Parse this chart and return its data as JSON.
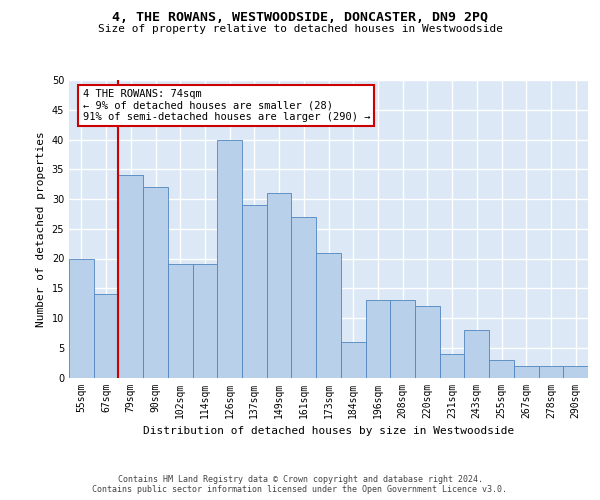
{
  "title": "4, THE ROWANS, WESTWOODSIDE, DONCASTER, DN9 2PQ",
  "subtitle": "Size of property relative to detached houses in Westwoodside",
  "xlabel": "Distribution of detached houses by size in Westwoodside",
  "ylabel": "Number of detached properties",
  "categories": [
    "55sqm",
    "67sqm",
    "79sqm",
    "90sqm",
    "102sqm",
    "114sqm",
    "126sqm",
    "137sqm",
    "149sqm",
    "161sqm",
    "173sqm",
    "184sqm",
    "196sqm",
    "208sqm",
    "220sqm",
    "231sqm",
    "243sqm",
    "255sqm",
    "267sqm",
    "278sqm",
    "290sqm"
  ],
  "values": [
    20,
    14,
    34,
    32,
    19,
    19,
    40,
    29,
    31,
    27,
    21,
    6,
    13,
    13,
    12,
    4,
    8,
    3,
    2,
    2,
    2
  ],
  "bar_color": "#b8d0ea",
  "bar_edge_color": "#4f86c0",
  "background_color": "#dce8f5",
  "grid_color": "#ffffff",
  "annotation_line1": "4 THE ROWANS: 74sqm",
  "annotation_line2": "← 9% of detached houses are smaller (28)",
  "annotation_line3": "91% of semi-detached houses are larger (290) →",
  "annotation_box_facecolor": "#ffffff",
  "annotation_box_edgecolor": "#cc0000",
  "vline_x_idx": 1.5,
  "vline_color": "#cc0000",
  "ylim_min": 0,
  "ylim_max": 50,
  "yticks": [
    0,
    5,
    10,
    15,
    20,
    25,
    30,
    35,
    40,
    45,
    50
  ],
  "footer_line1": "Contains HM Land Registry data © Crown copyright and database right 2024.",
  "footer_line2": "Contains public sector information licensed under the Open Government Licence v3.0.",
  "title_fontsize": 9.5,
  "subtitle_fontsize": 8.0,
  "ylabel_fontsize": 8.0,
  "xlabel_fontsize": 8.0,
  "tick_fontsize": 7.0,
  "annotation_fontsize": 7.5,
  "footer_fontsize": 6.0
}
